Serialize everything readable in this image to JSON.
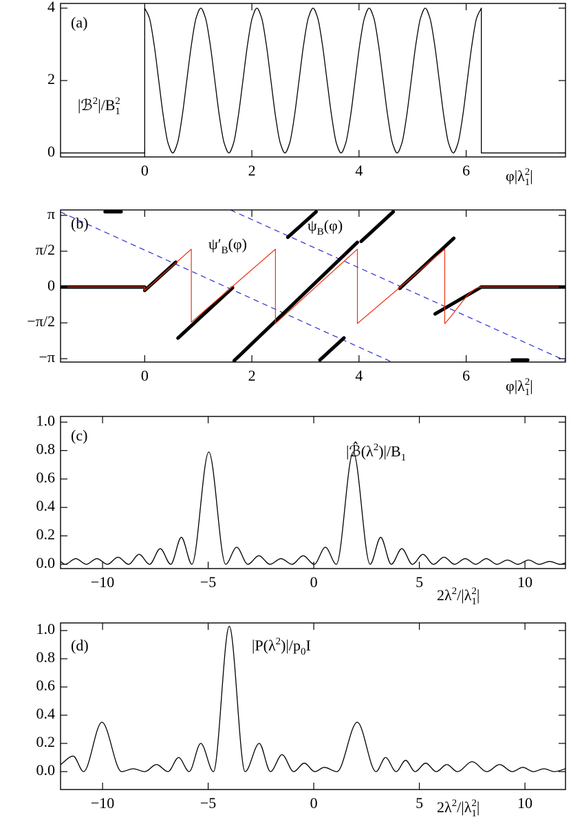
{
  "chart_data": [
    {
      "type": "line",
      "xlim": [
        -1.571,
        7.854
      ],
      "ylim": [
        -0.11,
        4.13
      ],
      "xticks": [
        0,
        2,
        4,
        6
      ],
      "yticks": [
        0,
        2,
        4
      ],
      "xlabel": [
        {
          "text": "φ|λ"
        },
        {
          "text": "1",
          "shift": "sub"
        },
        {
          "text": "2",
          "shift": "sup"
        },
        {
          "text": "|"
        }
      ],
      "annotations": [
        {
          "parts": [
            {
              "text": "(a)"
            }
          ]
        },
        {
          "parts": [
            {
              "text": "|ℬ"
            },
            {
              "text": "2",
              "shift": "sup"
            },
            {
              "text": "|/B"
            },
            {
              "text": "1",
              "shift": "sub"
            },
            {
              "text": "2",
              "shift": "sup"
            }
          ]
        }
      ],
      "series": [
        {
          "color": "#000000",
          "line_width": 1.3,
          "x": [
            -1.571,
            0,
            0,
            0.087,
            0.175,
            0.262,
            0.349,
            0.436,
            0.524,
            0.611,
            0.698,
            0.785,
            0.873,
            0.96,
            1.047,
            1.134,
            1.222,
            1.309,
            1.396,
            1.484,
            1.571,
            1.658,
            1.745,
            1.833,
            1.92,
            2.007,
            2.094,
            2.182,
            2.269,
            2.356,
            2.443,
            2.531,
            2.618,
            2.705,
            2.793,
            2.88,
            2.967,
            3.054,
            3.142,
            3.229,
            3.316,
            3.403,
            3.491,
            3.578,
            3.665,
            3.752,
            3.84,
            3.927,
            4.014,
            4.102,
            4.189,
            4.276,
            4.363,
            4.451,
            4.538,
            4.625,
            4.712,
            4.8,
            4.887,
            4.974,
            5.061,
            5.149,
            5.236,
            5.323,
            5.411,
            5.498,
            5.585,
            5.672,
            5.76,
            5.847,
            5.934,
            6.021,
            6.109,
            6.196,
            6.283,
            6.283,
            7.854
          ],
          "values": [
            0,
            0,
            4,
            3.73,
            3,
            2,
            1,
            0.27,
            0,
            0.27,
            1,
            2,
            3,
            3.73,
            4,
            3.73,
            3,
            2,
            1,
            0.27,
            0,
            0.27,
            1,
            2,
            3,
            3.73,
            4,
            3.73,
            3,
            2,
            1,
            0.27,
            0,
            0.27,
            1,
            2,
            3,
            3.73,
            4,
            3.73,
            3,
            2,
            1,
            0.27,
            0,
            0.27,
            1,
            2,
            3,
            3.73,
            4,
            3.73,
            3,
            2,
            1,
            0.27,
            0,
            0.27,
            1,
            2,
            3,
            3.73,
            4,
            3.73,
            3,
            2,
            1,
            0.27,
            0,
            0.27,
            1,
            2,
            3,
            3.73,
            4,
            0,
            0
          ]
        }
      ]
    },
    {
      "type": "line",
      "xlim": [
        -1.571,
        7.854
      ],
      "ylim": [
        -3.29,
        3.38
      ],
      "xticks": [
        0,
        2,
        4,
        6
      ],
      "yticks": [
        {
          "value": 3.1416,
          "label": "π"
        },
        {
          "value": 1.5708,
          "label": "π/2"
        },
        0,
        {
          "value": -1.5708,
          "label": "−π/2"
        },
        {
          "value": -3.1416,
          "label": "−π"
        }
      ],
      "xlabel": [
        {
          "text": "φ|λ"
        },
        {
          "text": "1",
          "shift": "sub"
        },
        {
          "text": "2",
          "shift": "sup"
        },
        {
          "text": "|"
        }
      ],
      "annotations": [
        {
          "parts": [
            {
              "text": "(b)"
            }
          ]
        },
        {
          "color": "#ee3311",
          "parts": [
            {
              "text": "ψ′"
            },
            {
              "text": "B",
              "shift": "sub"
            },
            {
              "text": "(φ)"
            }
          ]
        },
        {
          "parts": [
            {
              "text": "ψ"
            },
            {
              "text": "B",
              "shift": "sub"
            },
            {
              "text": "(φ)"
            }
          ]
        }
      ],
      "series": [
        {
          "color": "#2a2ad8",
          "line_width": 1.2,
          "dash": true,
          "x": [
            -1.571,
            4.615
          ],
          "values": [
            3.29,
            -3.29
          ]
        },
        {
          "color": "#2a2ad8",
          "line_width": 1.2,
          "dash": true,
          "x": [
            1.6,
            7.854
          ],
          "values": [
            3.38,
            -3.23
          ]
        },
        {
          "color": "#000000",
          "line_width": 5,
          "x": [
            -1.571,
            0,
            null,
            0,
            0.58,
            null,
            0.62,
            1.64,
            null,
            1.67,
            3.97,
            null,
            2.67,
            3.2,
            null,
            4.04,
            4.64,
            null,
            3.27,
            3.72,
            null,
            4.76,
            5.77,
            null,
            5.42,
            6.283,
            null,
            6.283,
            7.854,
            null,
            -0.74,
            -0.44,
            null,
            6.86,
            7.15
          ],
          "values": [
            0,
            0,
            null,
            -0.15,
            1.09,
            null,
            -2.24,
            -0.03,
            null,
            -3.23,
            1.96,
            null,
            2.18,
            3.3,
            null,
            2.0,
            3.3,
            null,
            -3.2,
            -2.23,
            null,
            -0.06,
            2.14,
            null,
            -1.18,
            0,
            null,
            0,
            0,
            null,
            3.3,
            3.3,
            null,
            -3.2,
            -3.2
          ]
        },
        {
          "color": "#ee3311",
          "line_width": 1.2,
          "x": [
            -1.571,
            0,
            0,
            0.87,
            0.87,
            2.44,
            2.44,
            3.97,
            3.97,
            5.6,
            5.6,
            6.283,
            7.854
          ],
          "values": [
            0,
            0,
            -0.15,
            1.66,
            -1.54,
            1.66,
            -1.6,
            1.66,
            -1.6,
            1.66,
            -1.6,
            0,
            0
          ]
        }
      ]
    },
    {
      "type": "line",
      "xlim": [
        -11.99,
        11.92
      ],
      "ylim": [
        -0.03,
        1.04
      ],
      "xticks": [
        {
          "value": -10,
          "label": "−10"
        },
        {
          "value": -5,
          "label": "−5"
        },
        0,
        5,
        10
      ],
      "yticks": [
        {
          "value": 0,
          "label": "0.0"
        },
        0.2,
        0.4,
        0.6,
        0.8,
        {
          "value": 1,
          "label": "1.0"
        }
      ],
      "xlabel": [
        {
          "text": "2λ"
        },
        {
          "text": "2",
          "shift": "sup"
        },
        {
          "text": "/|λ"
        },
        {
          "text": "1",
          "shift": "sub"
        },
        {
          "text": "2",
          "shift": "sup"
        },
        {
          "text": "|"
        }
      ],
      "annotations": [
        {
          "parts": [
            {
              "text": "(c)"
            }
          ]
        },
        {
          "parts": [
            {
              "text": "|ℬ̂(λ"
            },
            {
              "text": "2",
              "shift": "sup"
            },
            {
              "text": ")|/B"
            },
            {
              "text": "1",
              "shift": "sub"
            }
          ]
        }
      ],
      "series": [
        {
          "color": "#000000",
          "line_width": 1.3,
          "x": [
            -11.99,
            -11.77,
            -11.27,
            -10.77,
            -10.27,
            -9.77,
            -9.27,
            -8.77,
            -8.27,
            -7.77,
            -7.27,
            -6.77,
            -6.27,
            -5.77,
            -4.97,
            -4.17,
            -3.65,
            -3.12,
            -2.6,
            -2.07,
            -1.55,
            -1.03,
            -0.5,
            0.02,
            0.55,
            1.07,
            1.87,
            2.67,
            3.17,
            3.67,
            4.17,
            4.67,
            5.17,
            5.67,
            6.17,
            6.67,
            7.17,
            7.67,
            8.17,
            8.67,
            9.17,
            9.67,
            10.17,
            10.67,
            11.17,
            11.67,
            11.92
          ],
          "values": [
            0.02,
            0,
            0.04,
            0,
            0.04,
            0,
            0.05,
            0,
            0.07,
            0,
            0.11,
            0,
            0.19,
            0,
            0.79,
            0,
            0.12,
            0,
            0.06,
            0,
            0.04,
            0,
            0.06,
            0,
            0.12,
            0,
            0.79,
            0,
            0.19,
            0,
            0.11,
            0,
            0.07,
            0,
            0.05,
            0,
            0.04,
            0,
            0.04,
            0,
            0.03,
            0,
            0.03,
            0,
            0.02,
            0,
            0.01
          ]
        }
      ]
    },
    {
      "type": "line",
      "xlim": [
        -11.99,
        11.92
      ],
      "ylim": [
        -0.127,
        1.054
      ],
      "xticks": [
        {
          "value": -10,
          "label": "−10"
        },
        {
          "value": -5,
          "label": "−5"
        },
        0,
        5,
        10
      ],
      "yticks": [
        {
          "value": 0,
          "label": "0.0"
        },
        0.2,
        0.4,
        0.6,
        0.8,
        {
          "value": 1,
          "label": "1.0"
        }
      ],
      "xlabel": [
        {
          "text": "2λ"
        },
        {
          "text": "2",
          "shift": "sup"
        },
        {
          "text": "/|λ"
        },
        {
          "text": "1",
          "shift": "sub"
        },
        {
          "text": "2",
          "shift": "sup"
        },
        {
          "text": "|"
        }
      ],
      "annotations": [
        {
          "parts": [
            {
              "text": "(d)"
            }
          ]
        },
        {
          "parts": [
            {
              "text": "|P(λ"
            },
            {
              "text": "2",
              "shift": "sup"
            },
            {
              "text": ")|/p"
            },
            {
              "text": "0",
              "shift": "sub"
            },
            {
              "text": "I"
            }
          ]
        }
      ],
      "series": [
        {
          "color": "#000000",
          "line_width": 1.3,
          "x": [
            -11.99,
            -11.39,
            -10.9,
            -10.03,
            -9.1,
            -8.55,
            -8.0,
            -7.45,
            -6.9,
            -6.4,
            -5.9,
            -5.35,
            -4.75,
            -4.0,
            -3.25,
            -2.58,
            -2.05,
            -1.5,
            -0.95,
            -0.45,
            0.05,
            0.5,
            1.1,
            2.06,
            2.95,
            3.4,
            3.9,
            4.35,
            4.8,
            5.3,
            5.8,
            6.3,
            6.8,
            7.5,
            8.2,
            8.8,
            9.4,
            9.9,
            10.4,
            10.9,
            11.4,
            11.92
          ],
          "values": [
            0.05,
            0.11,
            0,
            0.35,
            0,
            0.02,
            0,
            0.05,
            0,
            0.1,
            0,
            0.2,
            0,
            1.03,
            0,
            0.2,
            0,
            0.12,
            0,
            0.06,
            0,
            0.03,
            0,
            0.35,
            0,
            0.1,
            0,
            0.08,
            0,
            0.06,
            0,
            0.05,
            0,
            0.07,
            0,
            0.05,
            0,
            0.03,
            0,
            0.02,
            0,
            0.02
          ]
        }
      ]
    }
  ]
}
